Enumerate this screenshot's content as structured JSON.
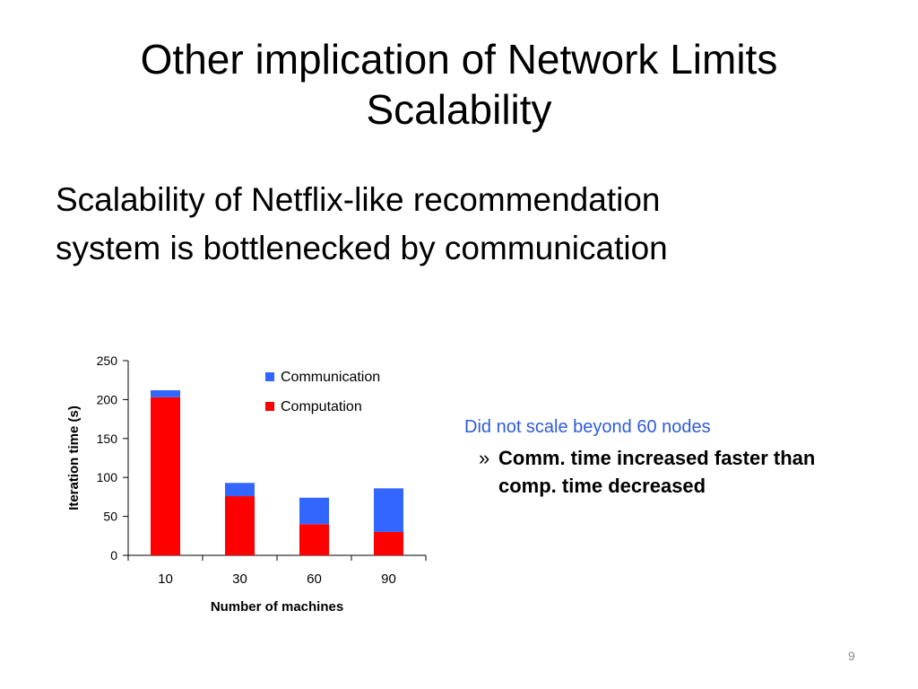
{
  "slide": {
    "title_lines": [
      "Other implication of Network Limits",
      "Scalability"
    ],
    "subtitle_lines": [
      "Scalability of Netflix-like recommendation",
      "system is bottlenecked by communication"
    ],
    "callout": {
      "heading": "Did not scale beyond 60 nodes",
      "bullet_symbol": "»",
      "point_lines": [
        "Comm. time increased faster than",
        "comp. time decreased"
      ]
    },
    "page_number": "9"
  },
  "chart_data": {
    "type": "bar",
    "stacked": true,
    "categories": [
      "10",
      "30",
      "60",
      "90"
    ],
    "series": [
      {
        "name": "Computation",
        "color": "#ff0000",
        "values": [
          203,
          76,
          40,
          30
        ]
      },
      {
        "name": "Communication",
        "color": "#3366ff",
        "values": [
          9,
          17,
          34,
          56
        ]
      }
    ],
    "xlabel": "Number of machines",
    "ylabel": "Iteration time (s)",
    "ylim": [
      0,
      250
    ],
    "yticks": [
      0,
      50,
      100,
      150,
      200,
      250
    ],
    "legend_order": [
      "Communication",
      "Computation"
    ],
    "legend_position": "top-right",
    "grid": false
  }
}
